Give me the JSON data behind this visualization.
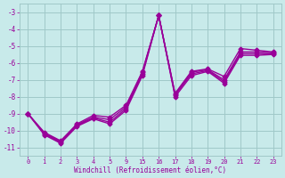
{
  "xlabel": "Windchill (Refroidissement éolien,°C)",
  "bg_color": "#c8eaea",
  "grid_color": "#a0c8c8",
  "line_color": "#990099",
  "line_width": 1.0,
  "marker": "D",
  "marker_size": 2.5,
  "xtick_labels": [
    "0",
    "1",
    "2",
    "3",
    "4",
    "5",
    "9",
    "15",
    "16",
    "17",
    "18",
    "19",
    "20",
    "21",
    "22",
    "23"
  ],
  "lines": [
    {
      "y": [
        -9.0,
        -10.1,
        -10.6,
        -9.6,
        -9.1,
        -9.2,
        -8.5,
        -6.5,
        -3.2,
        -7.8,
        -6.5,
        -6.35,
        -6.8,
        -5.15,
        -5.25,
        -5.35
      ]
    },
    {
      "y": [
        -9.0,
        -10.15,
        -10.65,
        -9.65,
        -9.2,
        -9.35,
        -8.6,
        -6.55,
        -3.2,
        -7.85,
        -6.55,
        -6.4,
        -7.0,
        -5.35,
        -5.35,
        -5.4
      ]
    },
    {
      "y": [
        -9.0,
        -10.2,
        -10.7,
        -9.7,
        -9.25,
        -9.5,
        -8.7,
        -6.65,
        -3.2,
        -7.9,
        -6.65,
        -6.45,
        -7.1,
        -5.45,
        -5.45,
        -5.45
      ]
    },
    {
      "y": [
        -9.0,
        -10.25,
        -10.75,
        -9.75,
        -9.3,
        -9.6,
        -8.8,
        -6.75,
        -3.2,
        -8.0,
        -6.75,
        -6.5,
        -7.2,
        -5.55,
        -5.55,
        -5.5
      ]
    }
  ],
  "yticks": [
    -3,
    -4,
    -5,
    -6,
    -7,
    -8,
    -9,
    -10,
    -11
  ],
  "ylim": [
    -11.5,
    -2.5
  ]
}
